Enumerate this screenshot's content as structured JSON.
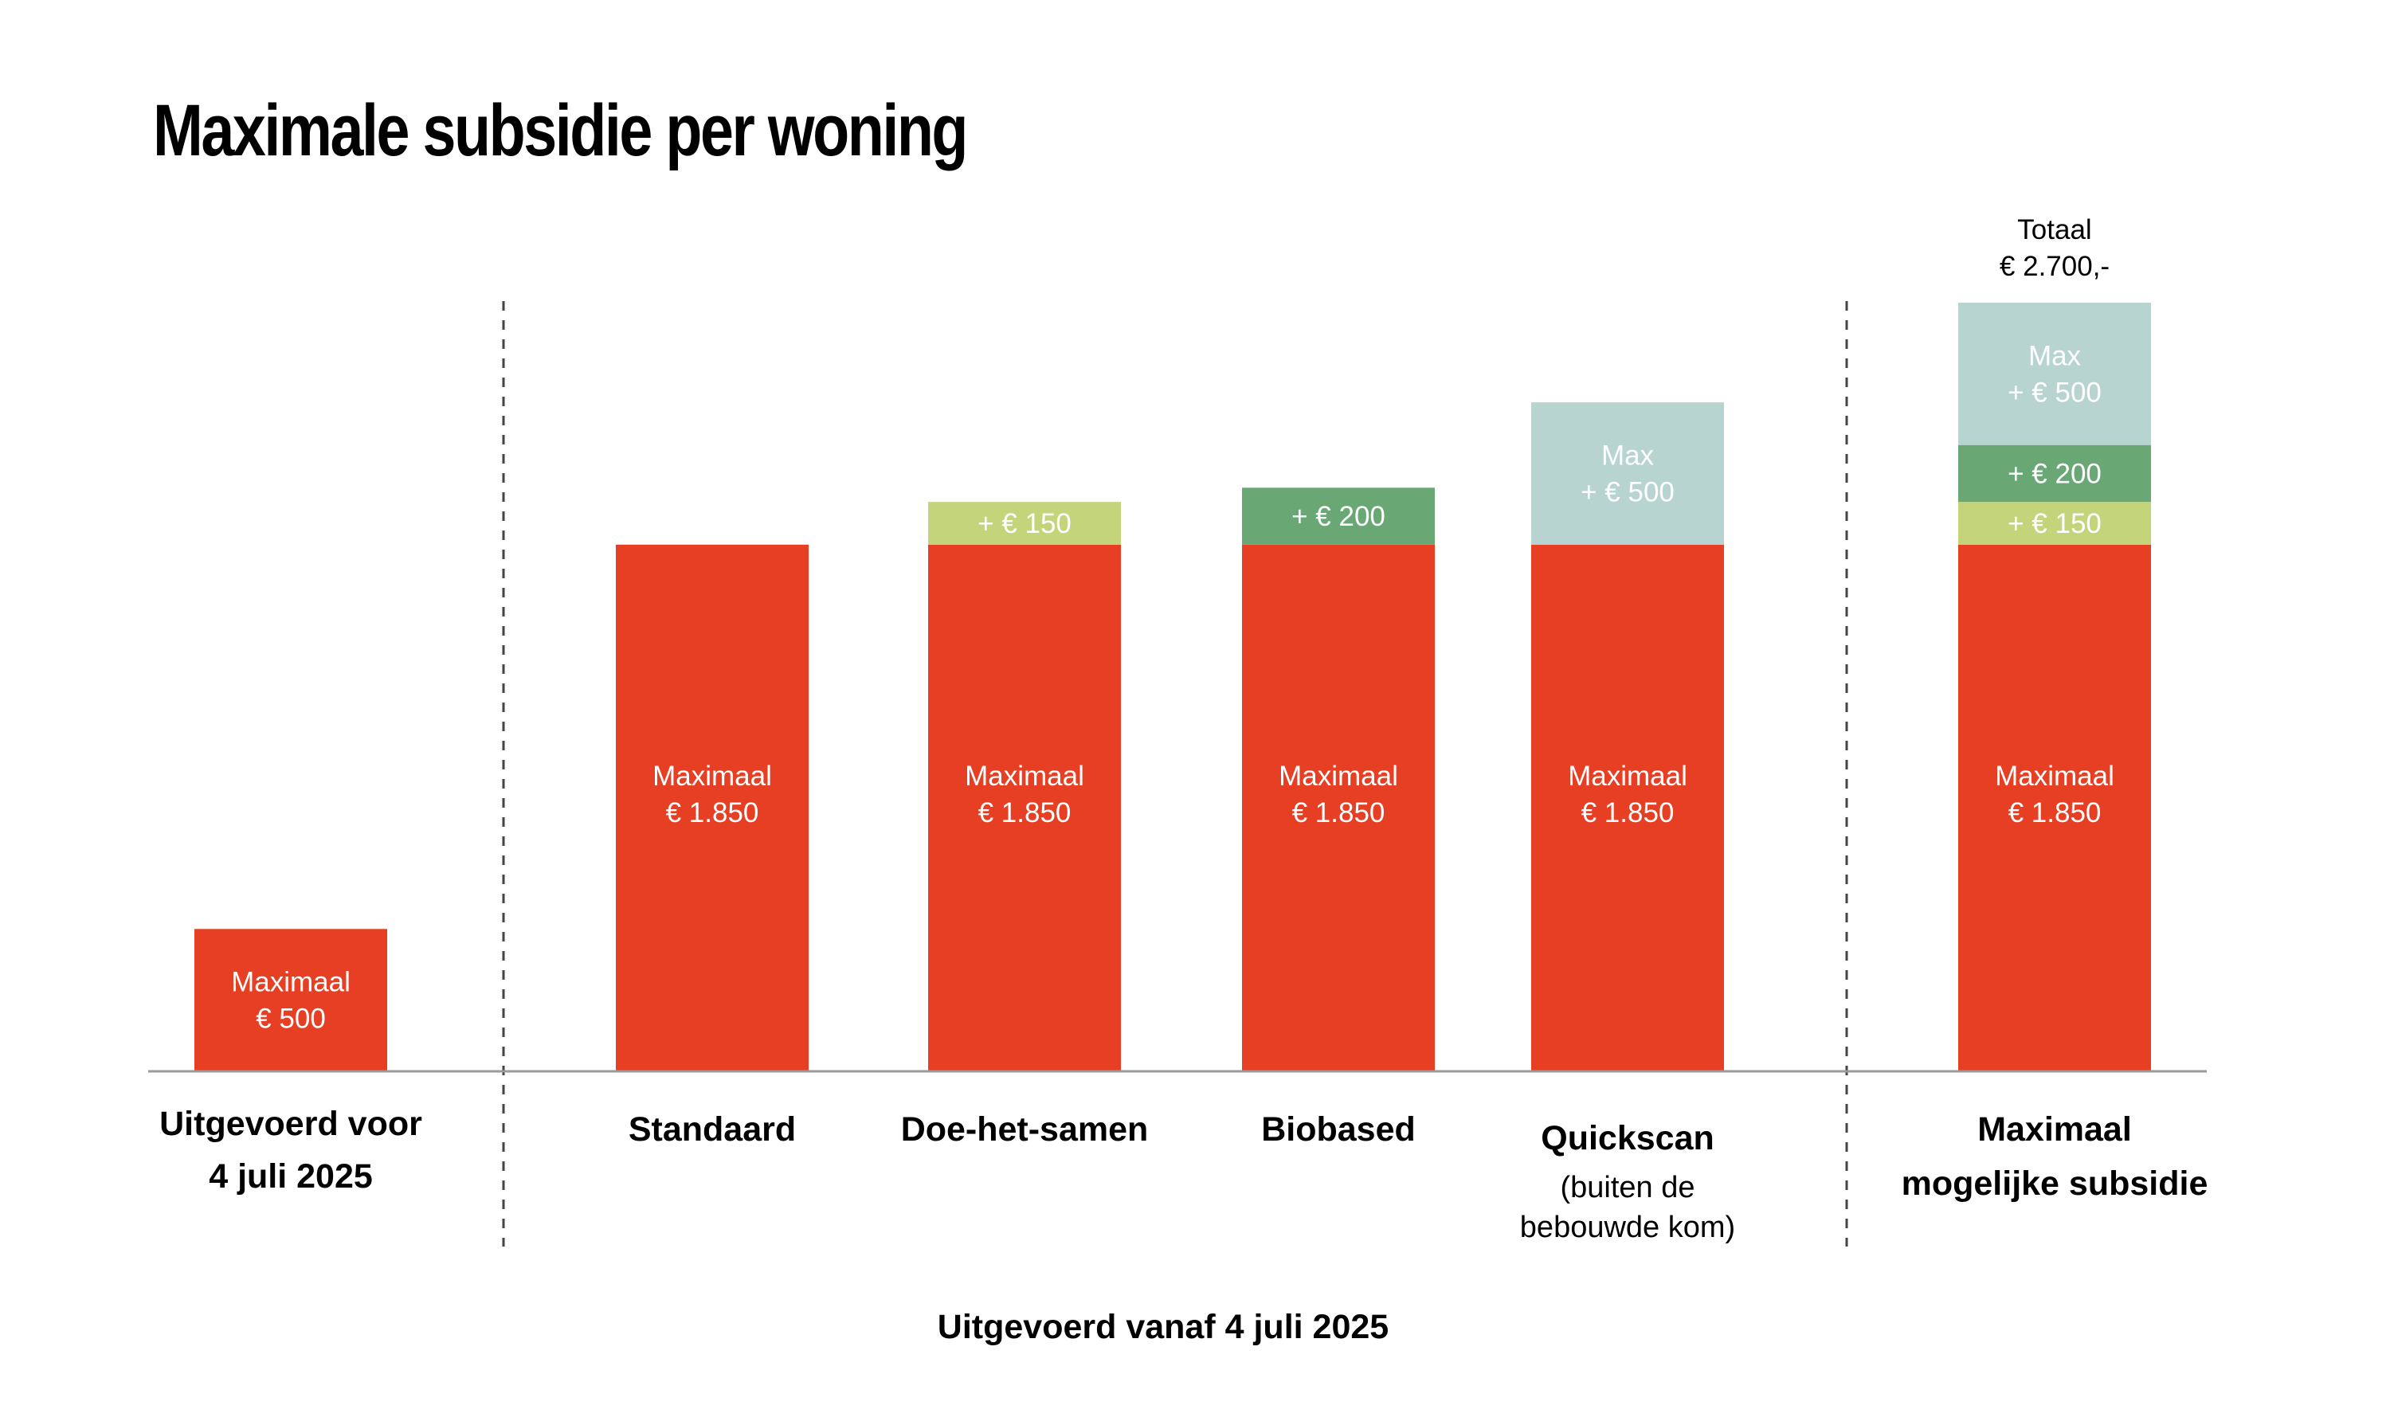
{
  "chart_data": {
    "type": "bar",
    "stacked": true,
    "title": "Maximale subsidie per woning",
    "ylim": [
      0,
      2700
    ],
    "colors": {
      "base": "#e63f24",
      "doe_het_samen": "#c3d47a",
      "biobased": "#69a874",
      "quickscan": "#b8d4d1",
      "baseline": "#9a9a9a",
      "divider": "#444444"
    },
    "categories": [
      {
        "label_lines": [
          "Uitgevoerd voor",
          "4 juli 2025"
        ],
        "sub_lines": [],
        "segments": [
          {
            "value": 500,
            "color_key": "base",
            "label_lines": [
              "Maximaal",
              "€ 500"
            ]
          }
        ]
      },
      {
        "label_lines": [
          "Standaard"
        ],
        "sub_lines": [],
        "segments": [
          {
            "value": 1850,
            "color_key": "base",
            "label_lines": [
              "Maximaal",
              "€ 1.850"
            ]
          }
        ]
      },
      {
        "label_lines": [
          "Doe-het-samen"
        ],
        "sub_lines": [],
        "segments": [
          {
            "value": 1850,
            "color_key": "base",
            "label_lines": [
              "Maximaal",
              "€ 1.850"
            ]
          },
          {
            "value": 150,
            "color_key": "doe_het_samen",
            "label_lines": [
              "+ € 150"
            ]
          }
        ]
      },
      {
        "label_lines": [
          "Biobased"
        ],
        "sub_lines": [],
        "segments": [
          {
            "value": 1850,
            "color_key": "base",
            "label_lines": [
              "Maximaal",
              "€ 1.850"
            ]
          },
          {
            "value": 200,
            "color_key": "biobased",
            "label_lines": [
              "+ € 200"
            ]
          }
        ]
      },
      {
        "label_lines": [
          "Quickscan"
        ],
        "sub_lines": [
          "(buiten de",
          "bebouwde kom)"
        ],
        "segments": [
          {
            "value": 1850,
            "color_key": "base",
            "label_lines": [
              "Maximaal",
              "€ 1.850"
            ]
          },
          {
            "value": 500,
            "color_key": "quickscan",
            "label_lines": [
              "Max",
              "+ € 500"
            ]
          }
        ]
      },
      {
        "label_lines": [
          "Maximaal",
          "mogelijke subsidie"
        ],
        "sub_lines": [],
        "total_lines": [
          "Totaal",
          "€ 2.700,-"
        ],
        "segments": [
          {
            "value": 1850,
            "color_key": "base",
            "label_lines": [
              "Maximaal",
              "€ 1.850"
            ]
          },
          {
            "value": 150,
            "color_key": "doe_het_samen",
            "label_lines": [
              "+ € 150"
            ]
          },
          {
            "value": 200,
            "color_key": "biobased",
            "label_lines": [
              "+ € 200"
            ]
          },
          {
            "value": 500,
            "color_key": "quickscan",
            "label_lines": [
              "Max",
              "+ € 500"
            ]
          }
        ]
      }
    ],
    "group_label": "Uitgevoerd vanaf 4 juli 2025"
  }
}
